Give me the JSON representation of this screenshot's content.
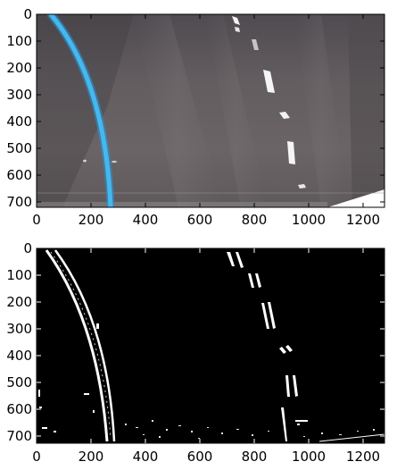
{
  "figure": {
    "panels": [
      {
        "name": "warped-color-view",
        "x_ticks": [
          "0",
          "200",
          "400",
          "600",
          "800",
          "1000",
          "1200"
        ],
        "y_ticks": [
          "0",
          "100",
          "200",
          "300",
          "400",
          "500",
          "600",
          "700"
        ]
      },
      {
        "name": "binary-threshold-view",
        "x_ticks": [
          "0",
          "200",
          "400",
          "600",
          "800",
          "1000",
          "1200"
        ],
        "y_ticks": [
          "0",
          "100",
          "200",
          "300",
          "400",
          "500",
          "600",
          "700"
        ]
      }
    ],
    "colors": {
      "road": "#6a6466",
      "left_lane_line": "#3fb2ea",
      "binary_background": "#000000",
      "binary_foreground": "#ffffff"
    }
  }
}
